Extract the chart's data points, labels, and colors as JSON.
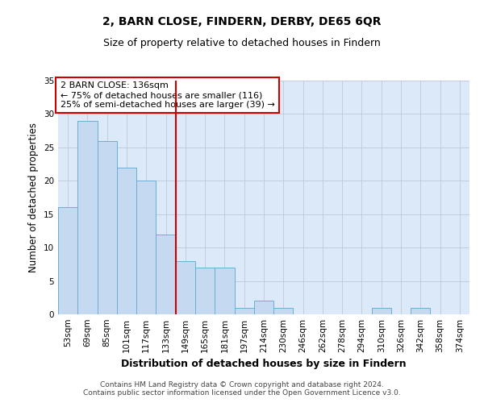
{
  "title": "2, BARN CLOSE, FINDERN, DERBY, DE65 6QR",
  "subtitle": "Size of property relative to detached houses in Findern",
  "xlabel": "Distribution of detached houses by size in Findern",
  "ylabel": "Number of detached properties",
  "categories": [
    "53sqm",
    "69sqm",
    "85sqm",
    "101sqm",
    "117sqm",
    "133sqm",
    "149sqm",
    "165sqm",
    "181sqm",
    "197sqm",
    "214sqm",
    "230sqm",
    "246sqm",
    "262sqm",
    "278sqm",
    "294sqm",
    "310sqm",
    "326sqm",
    "342sqm",
    "358sqm",
    "374sqm"
  ],
  "values": [
    16,
    29,
    26,
    22,
    20,
    12,
    8,
    7,
    7,
    1,
    2,
    1,
    0,
    0,
    0,
    0,
    1,
    0,
    1,
    0,
    0
  ],
  "bar_color": "#c5d9f0",
  "bar_edge_color": "#6baed6",
  "vline_x": 5.5,
  "vline_color": "#cc0000",
  "annotation_text": "2 BARN CLOSE: 136sqm\n← 75% of detached houses are smaller (116)\n25% of semi-detached houses are larger (39) →",
  "annotation_box_color": "#ffffff",
  "annotation_box_edge": "#cc0000",
  "ylim": [
    0,
    35
  ],
  "yticks": [
    0,
    5,
    10,
    15,
    20,
    25,
    30,
    35
  ],
  "footer": "Contains HM Land Registry data © Crown copyright and database right 2024.\nContains public sector information licensed under the Open Government Licence v3.0.",
  "title_fontsize": 10,
  "subtitle_fontsize": 9,
  "xlabel_fontsize": 9,
  "ylabel_fontsize": 8.5,
  "tick_fontsize": 7.5,
  "annotation_fontsize": 8,
  "footer_fontsize": 6.5,
  "bg_color": "#dce9f8"
}
